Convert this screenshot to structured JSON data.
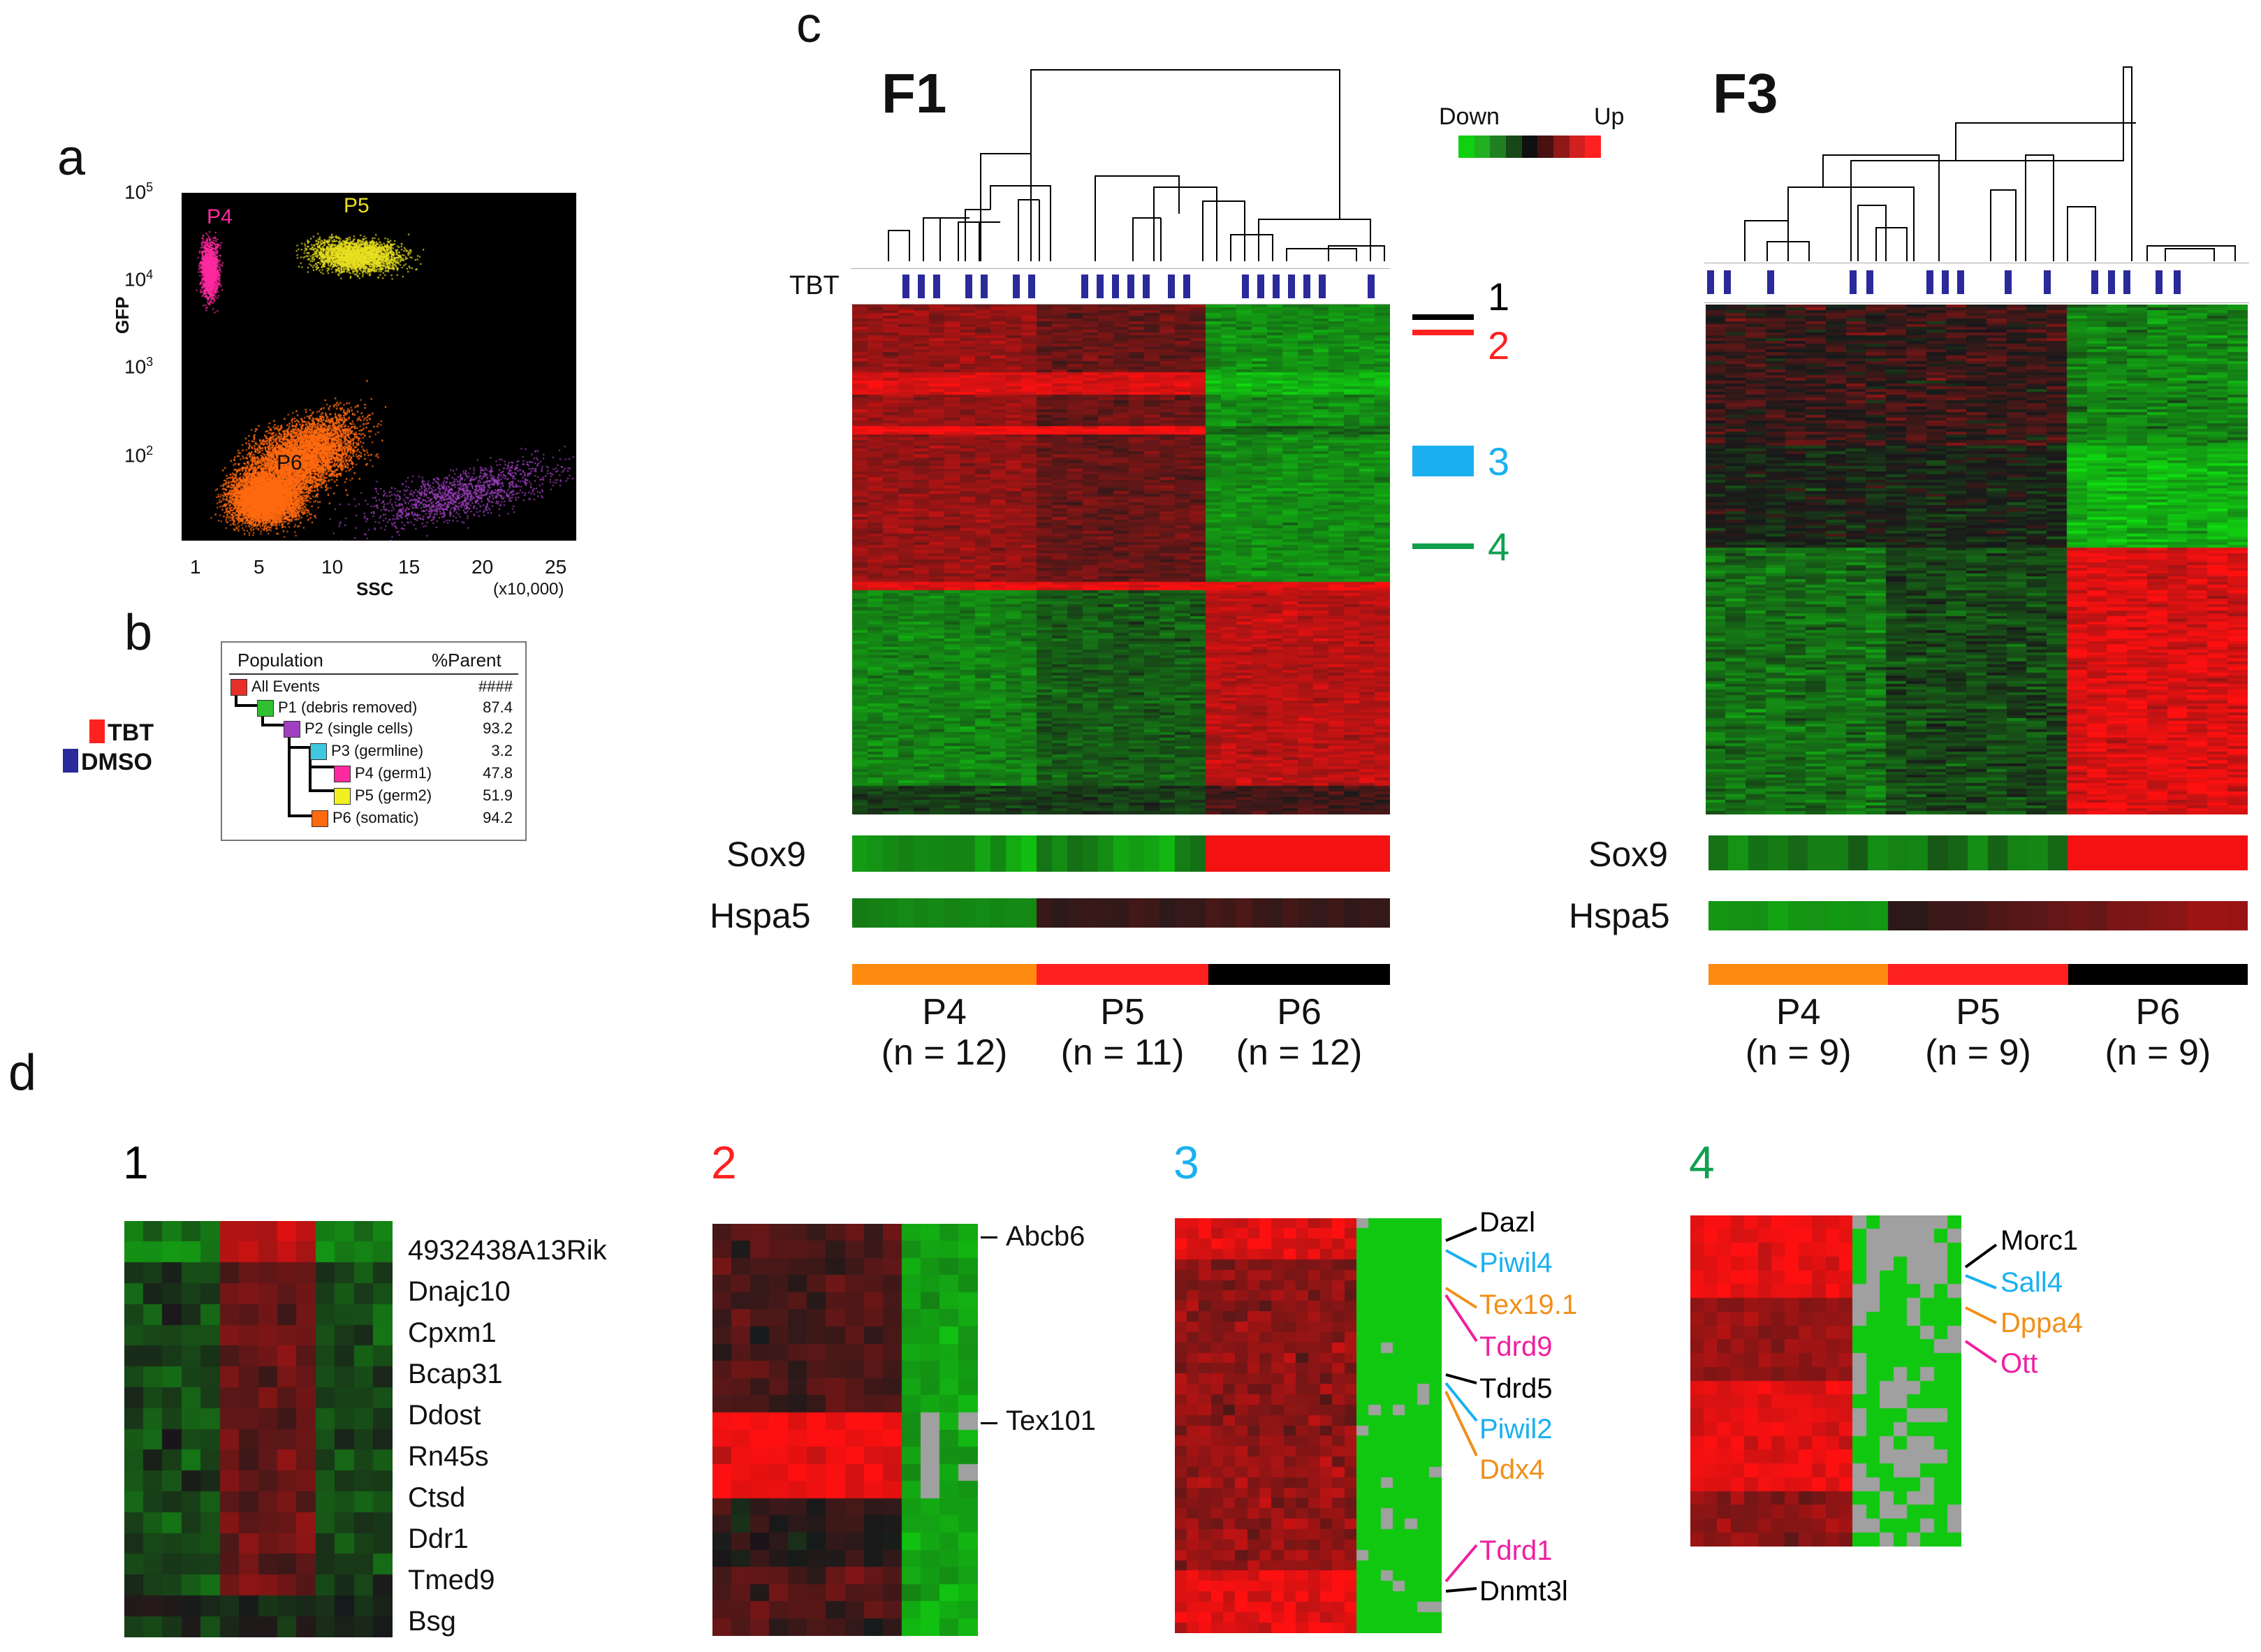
{
  "panels": {
    "a": "a",
    "b": "b",
    "c": "c",
    "d": "d"
  },
  "flow": {
    "ylabel": "GFP",
    "xlabel": "SSC",
    "xunit": "(x10,000)",
    "xticks": [
      "1",
      "5",
      "10",
      "15",
      "20",
      "25"
    ],
    "yticks": [
      {
        "base": "10",
        "exp": "5"
      },
      {
        "base": "10",
        "exp": "4"
      },
      {
        "base": "10",
        "exp": "3"
      },
      {
        "base": "10",
        "exp": "2"
      }
    ],
    "populations": [
      {
        "name": "P4",
        "color": "#ff2aa0"
      },
      {
        "name": "P5",
        "color": "#e8e020"
      },
      {
        "name": "P6",
        "color": "#ff6a10"
      }
    ],
    "extra_color": "#a040c0"
  },
  "legend": {
    "tbt": {
      "label": "TBT",
      "color": "#ff2020"
    },
    "dmso": {
      "label": "DMSO",
      "color": "#2a2a9a"
    }
  },
  "gating": {
    "header_population": "Population",
    "header_parent": "%Parent",
    "rows": [
      {
        "name": "All Events",
        "value": "####",
        "color": "#e8302a"
      },
      {
        "name": "P1 (debris removed)",
        "value": "87.4",
        "color": "#30c030"
      },
      {
        "name": "P2 (single cells)",
        "value": "93.2",
        "color": "#a040c0"
      },
      {
        "name": "P3 (germline)",
        "value": "3.2",
        "color": "#40c8e0"
      },
      {
        "name": "P4 (germ1)",
        "value": "47.8",
        "color": "#ff2aa0"
      },
      {
        "name": "P5 (germ2)",
        "value": "51.9",
        "color": "#f0f020"
      },
      {
        "name": "P6 (somatic)",
        "value": "94.2",
        "color": "#ff6a10"
      }
    ]
  },
  "heatmaps": {
    "f1_title": "F1",
    "f3_title": "F3",
    "tbt_row_label": "TBT",
    "scale_down": "Down",
    "scale_up": "Up",
    "scale_colors": [
      "#10d010",
      "#20b020",
      "#208020",
      "#184818",
      "#101010",
      "#481010",
      "#901818",
      "#d02020",
      "#ff2020"
    ],
    "clusters": [
      {
        "label": "1",
        "color": "#000000"
      },
      {
        "label": "2",
        "color": "#ff2020"
      },
      {
        "label": "3",
        "color": "#1ab0f0"
      },
      {
        "label": "4",
        "color": "#10a050"
      }
    ],
    "genes": {
      "sox9": "Sox9",
      "hspa5": "Hspa5"
    },
    "group_colors": [
      "#ff8a10",
      "#ff2020",
      "#000000"
    ],
    "f1_groups": [
      {
        "name": "P4",
        "n": "(n = 12)"
      },
      {
        "name": "P5",
        "n": "(n = 11)"
      },
      {
        "name": "P6",
        "n": "(n = 12)"
      }
    ],
    "f3_groups": [
      {
        "name": "P4",
        "n": "(n = 9)"
      },
      {
        "name": "P5",
        "n": "(n = 9)"
      },
      {
        "name": "P6",
        "n": "(n = 9)"
      }
    ]
  },
  "detail": {
    "c1": {
      "title": "1",
      "color": "#000000",
      "genes": [
        "4932438A13Rik",
        "Dnajc10",
        "Cpxm1",
        "Bcap31",
        "Ddost",
        "Rn45s",
        "Ctsd",
        "Ddr1",
        "Tmed9",
        "Bsg"
      ]
    },
    "c2": {
      "title": "2",
      "color": "#ff2020",
      "genes": [
        {
          "name": "Abcb6",
          "color": "#000000"
        },
        {
          "name": "Tex101",
          "color": "#000000"
        }
      ]
    },
    "c3": {
      "title": "3",
      "color": "#1ab0f0",
      "genes": [
        {
          "name": "Dazl",
          "color": "#000000"
        },
        {
          "name": "Piwil4",
          "color": "#1ab0f0"
        },
        {
          "name": "Tex19.1",
          "color": "#f0901a"
        },
        {
          "name": "Tdrd9",
          "color": "#f020a0"
        },
        {
          "name": "Tdrd5",
          "color": "#000000"
        },
        {
          "name": "Piwil2",
          "color": "#1ab0f0"
        },
        {
          "name": "Ddx4",
          "color": "#f0901a"
        },
        {
          "name": "Tdrd1",
          "color": "#f020a0"
        },
        {
          "name": "Dnmt3l",
          "color": "#000000"
        }
      ]
    },
    "c4": {
      "title": "4",
      "color": "#10a050",
      "genes": [
        {
          "name": "Morc1",
          "color": "#000000"
        },
        {
          "name": "Sall4",
          "color": "#1ab0f0"
        },
        {
          "name": "Dppa4",
          "color": "#f0901a"
        },
        {
          "name": "Ott",
          "color": "#f020a0"
        }
      ]
    }
  }
}
